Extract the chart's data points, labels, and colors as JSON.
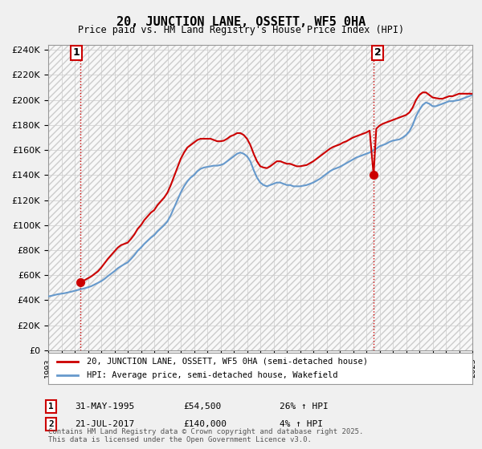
{
  "title": "20, JUNCTION LANE, OSSETT, WF5 0HA",
  "subtitle": "Price paid vs. HM Land Registry's House Price Index (HPI)",
  "legend_line1": "20, JUNCTION LANE, OSSETT, WF5 0HA (semi-detached house)",
  "legend_line2": "HPI: Average price, semi-detached house, Wakefield",
  "annotation1_label": "1",
  "annotation1_date": "31-MAY-1995",
  "annotation1_price": "£54,500",
  "annotation1_hpi": "26% ↑ HPI",
  "annotation2_label": "2",
  "annotation2_date": "21-JUL-2017",
  "annotation2_price": "£140,000",
  "annotation2_hpi": "4% ↑ HPI",
  "footer": "Contains HM Land Registry data © Crown copyright and database right 2025.\nThis data is licensed under the Open Government Licence v3.0.",
  "price_color": "#cc0000",
  "hpi_color": "#6699cc",
  "background_color": "#f0f0f0",
  "plot_bg_color": "#ffffff",
  "grid_color": "#cccccc",
  "xmin": 1993,
  "xmax": 2025,
  "ymin": 0,
  "ymax": 244000,
  "yticks": [
    0,
    20000,
    40000,
    60000,
    80000,
    100000,
    120000,
    140000,
    160000,
    180000,
    200000,
    220000,
    240000
  ],
  "ytick_labels": [
    "£0",
    "£20K",
    "£40K",
    "£60K",
    "£80K",
    "£100K",
    "£120K",
    "£140K",
    "£160K",
    "£180K",
    "£200K",
    "£220K",
    "£240K"
  ],
  "sale1_x": 1995.42,
  "sale1_y": 54500,
  "sale2_x": 2017.55,
  "sale2_y": 140000,
  "hpi_years": [
    1993.0,
    1993.25,
    1993.5,
    1993.75,
    1994.0,
    1994.25,
    1994.5,
    1994.75,
    1995.0,
    1995.25,
    1995.5,
    1995.75,
    1996.0,
    1996.25,
    1996.5,
    1996.75,
    1997.0,
    1997.25,
    1997.5,
    1997.75,
    1998.0,
    1998.25,
    1998.5,
    1998.75,
    1999.0,
    1999.25,
    1999.5,
    1999.75,
    2000.0,
    2000.25,
    2000.5,
    2000.75,
    2001.0,
    2001.25,
    2001.5,
    2001.75,
    2002.0,
    2002.25,
    2002.5,
    2002.75,
    2003.0,
    2003.25,
    2003.5,
    2003.75,
    2004.0,
    2004.25,
    2004.5,
    2004.75,
    2005.0,
    2005.25,
    2005.5,
    2005.75,
    2006.0,
    2006.25,
    2006.5,
    2006.75,
    2007.0,
    2007.25,
    2007.5,
    2007.75,
    2008.0,
    2008.25,
    2008.5,
    2008.75,
    2009.0,
    2009.25,
    2009.5,
    2009.75,
    2010.0,
    2010.25,
    2010.5,
    2010.75,
    2011.0,
    2011.25,
    2011.5,
    2011.75,
    2012.0,
    2012.25,
    2012.5,
    2012.75,
    2013.0,
    2013.25,
    2013.5,
    2013.75,
    2014.0,
    2014.25,
    2014.5,
    2014.75,
    2015.0,
    2015.25,
    2015.5,
    2015.75,
    2016.0,
    2016.25,
    2016.5,
    2016.75,
    2017.0,
    2017.25,
    2017.5,
    2017.75,
    2018.0,
    2018.25,
    2018.5,
    2018.75,
    2019.0,
    2019.25,
    2019.5,
    2019.75,
    2020.0,
    2020.25,
    2020.5,
    2020.75,
    2021.0,
    2021.25,
    2021.5,
    2021.75,
    2022.0,
    2022.25,
    2022.5,
    2022.75,
    2023.0,
    2023.25,
    2023.5,
    2023.75,
    2024.0,
    2024.25,
    2024.5,
    2024.75,
    2025.0
  ],
  "hpi_values": [
    43000,
    43500,
    44200,
    44800,
    45200,
    45600,
    46200,
    46800,
    47500,
    48200,
    48800,
    49500,
    50300,
    51200,
    52500,
    53800,
    55200,
    57000,
    59200,
    61200,
    63200,
    65500,
    67200,
    68800,
    70200,
    73000,
    76000,
    79500,
    82000,
    85000,
    87500,
    90000,
    92000,
    95000,
    97500,
    100000,
    103000,
    108000,
    114000,
    120000,
    126000,
    131000,
    135000,
    138000,
    140000,
    143000,
    145000,
    146000,
    146500,
    147000,
    147500,
    147500,
    148000,
    149000,
    151000,
    153000,
    155000,
    157000,
    158000,
    157000,
    155000,
    151000,
    144000,
    138000,
    134000,
    132000,
    131000,
    132000,
    133000,
    134000,
    134000,
    133000,
    132000,
    132000,
    131000,
    131000,
    131000,
    131500,
    132000,
    133000,
    134000,
    135500,
    137000,
    139000,
    141000,
    143000,
    144500,
    145500,
    146500,
    148000,
    149500,
    151000,
    152500,
    154000,
    155000,
    156000,
    157000,
    158000,
    159500,
    161000,
    163000,
    164000,
    165000,
    166500,
    167500,
    168000,
    168500,
    170000,
    172000,
    175000,
    180000,
    187000,
    192000,
    196000,
    198000,
    197000,
    195000,
    195000,
    196000,
    197000,
    198000,
    199000,
    199000,
    199500,
    200000,
    201000,
    202000,
    203000,
    204000
  ],
  "price_years": [
    1993.0,
    1993.25,
    1993.5,
    1993.75,
    1994.0,
    1994.25,
    1994.5,
    1994.75,
    1995.0,
    1995.25,
    1995.42,
    1995.75,
    1996.0,
    1996.25,
    1996.5,
    1996.75,
    1997.0,
    1997.25,
    1997.5,
    1997.75,
    1998.0,
    1998.25,
    1998.5,
    1998.75,
    1999.0,
    1999.25,
    1999.5,
    1999.75,
    2000.0,
    2000.25,
    2000.5,
    2000.75,
    2001.0,
    2001.25,
    2001.5,
    2001.75,
    2002.0,
    2002.25,
    2002.5,
    2002.75,
    2003.0,
    2003.25,
    2003.5,
    2003.75,
    2004.0,
    2004.25,
    2004.5,
    2004.75,
    2005.0,
    2005.25,
    2005.5,
    2005.75,
    2006.0,
    2006.25,
    2006.5,
    2006.75,
    2007.0,
    2007.25,
    2007.5,
    2007.75,
    2008.0,
    2008.25,
    2008.5,
    2008.75,
    2009.0,
    2009.25,
    2009.5,
    2009.75,
    2010.0,
    2010.25,
    2010.5,
    2010.75,
    2011.0,
    2011.25,
    2011.5,
    2011.75,
    2012.0,
    2012.25,
    2012.5,
    2012.75,
    2013.0,
    2013.25,
    2013.5,
    2013.75,
    2014.0,
    2014.25,
    2014.5,
    2014.75,
    2015.0,
    2015.25,
    2015.5,
    2015.75,
    2016.0,
    2016.25,
    2016.5,
    2016.75,
    2017.0,
    2017.25,
    2017.55,
    2017.75,
    2018.0,
    2018.25,
    2018.5,
    2018.75,
    2019.0,
    2019.25,
    2019.5,
    2019.75,
    2020.0,
    2020.25,
    2020.5,
    2020.75,
    2021.0,
    2021.25,
    2021.5,
    2021.75,
    2022.0,
    2022.25,
    2022.5,
    2022.75,
    2023.0,
    2023.25,
    2023.5,
    2023.75,
    2024.0,
    2024.25,
    2024.5,
    2024.75,
    2025.0
  ],
  "price_values": [
    null,
    null,
    null,
    null,
    null,
    null,
    null,
    null,
    null,
    null,
    54500,
    56000,
    57500,
    59000,
    61000,
    63000,
    66000,
    69500,
    73000,
    76000,
    79000,
    82000,
    84000,
    85000,
    86000,
    89000,
    92500,
    97000,
    100000,
    104000,
    107000,
    110000,
    112000,
    116000,
    119000,
    122000,
    126000,
    132000,
    139000,
    146000,
    153000,
    158000,
    162000,
    164000,
    166000,
    168000,
    169000,
    169000,
    169000,
    169000,
    168000,
    167000,
    167000,
    167500,
    169000,
    171000,
    172000,
    173500,
    173500,
    172000,
    169000,
    164000,
    157000,
    151000,
    147000,
    146000,
    145500,
    147000,
    149000,
    151000,
    151000,
    150000,
    149000,
    149000,
    148000,
    147000,
    147000,
    147500,
    148000,
    149500,
    151000,
    153000,
    155000,
    157000,
    159000,
    161000,
    162500,
    163500,
    164500,
    166000,
    167000,
    168500,
    170000,
    171000,
    172000,
    173000,
    174000,
    175500,
    140000,
    177000,
    179500,
    181000,
    182000,
    183000,
    184000,
    185000,
    186000,
    187000,
    188000,
    190000,
    194000,
    200000,
    204000,
    206000,
    206000,
    204000,
    202000,
    201500,
    201000,
    201000,
    202000,
    203000,
    203000,
    204000,
    205000,
    205000,
    205000,
    205000,
    205000
  ]
}
